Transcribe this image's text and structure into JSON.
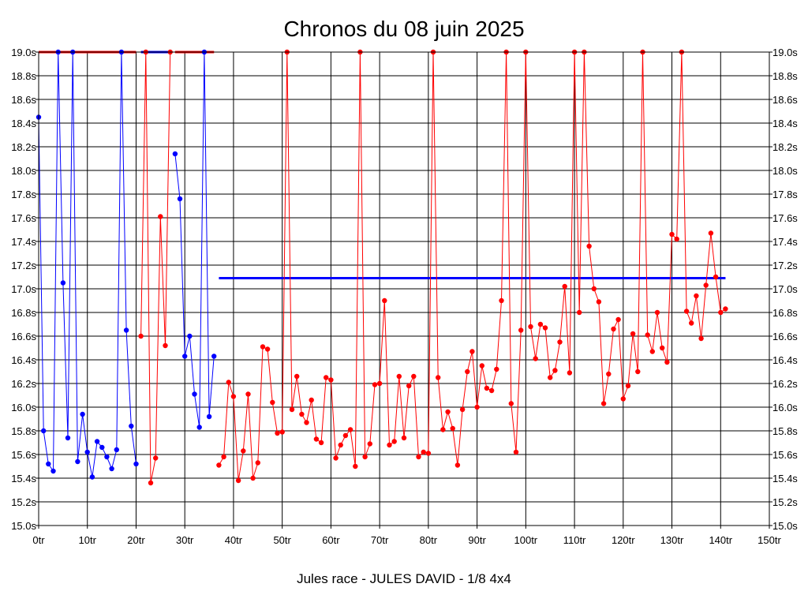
{
  "chart_data": {
    "type": "line",
    "title": "Chronos du 08 juin 2025",
    "xlabel": "Jules race - JULES DAVID - 1/8 4x4",
    "ylabel": "",
    "xlim": [
      0,
      150
    ],
    "ylim": [
      15.0,
      19.0
    ],
    "x_ticks": [
      0,
      10,
      20,
      30,
      40,
      50,
      60,
      70,
      80,
      90,
      100,
      110,
      120,
      130,
      140,
      150
    ],
    "x_tick_labels": [
      "0tr",
      "10tr",
      "20tr",
      "30tr",
      "40tr",
      "50tr",
      "60tr",
      "70tr",
      "80tr",
      "90tr",
      "100tr",
      "110tr",
      "120tr",
      "130tr",
      "140tr",
      "150tr"
    ],
    "y_ticks": [
      15.0,
      15.2,
      15.4,
      15.6,
      15.8,
      16.0,
      16.2,
      16.4,
      16.6,
      16.8,
      17.0,
      17.2,
      17.4,
      17.6,
      17.8,
      18.0,
      18.2,
      18.4,
      18.6,
      18.8,
      19.0
    ],
    "y_tick_labels": [
      "15.0s",
      "15.2s",
      "15.4s",
      "15.6s",
      "15.8s",
      "16.0s",
      "16.2s",
      "16.4s",
      "16.6s",
      "16.8s",
      "17.0s",
      "17.2s",
      "17.4s",
      "17.6s",
      "17.8s",
      "18.0s",
      "18.2s",
      "18.4s",
      "18.6s",
      "18.8s",
      "19.0s"
    ],
    "grid": true,
    "colors": {
      "blue_series": "#0000ff",
      "red_series": "#ff0000",
      "grid": "#000000"
    },
    "series": [
      {
        "color": "#0000ff",
        "points": [
          [
            0,
            18.45
          ],
          [
            1,
            15.8
          ],
          [
            2,
            15.52
          ],
          [
            3,
            15.46
          ],
          [
            4,
            19.0
          ],
          [
            5,
            17.05
          ],
          [
            6,
            15.74
          ],
          [
            7,
            19.0
          ],
          [
            8,
            15.54
          ],
          [
            9,
            15.94
          ],
          [
            10,
            15.62
          ],
          [
            11,
            15.41
          ],
          [
            12,
            15.71
          ],
          [
            13,
            15.66
          ],
          [
            14,
            15.58
          ],
          [
            15,
            15.48
          ],
          [
            16,
            15.64
          ],
          [
            17,
            19.0
          ],
          [
            18,
            16.65
          ],
          [
            19,
            15.84
          ],
          [
            20,
            15.52
          ]
        ]
      },
      {
        "color": "#ff0000",
        "points": [
          [
            21,
            16.6
          ],
          [
            22,
            19.0
          ],
          [
            23,
            15.36
          ],
          [
            24,
            15.57
          ],
          [
            25,
            17.61
          ],
          [
            26,
            16.52
          ],
          [
            27,
            19.0
          ]
        ]
      },
      {
        "color": "#0000ff",
        "points": [
          [
            28,
            18.14
          ],
          [
            29,
            17.76
          ],
          [
            30,
            16.43
          ],
          [
            31,
            16.6
          ],
          [
            32,
            16.11
          ],
          [
            33,
            15.83
          ],
          [
            34,
            19.0
          ],
          [
            35,
            15.92
          ],
          [
            36,
            16.43
          ]
        ]
      },
      {
        "color": "#ff0000",
        "points": [
          [
            37,
            15.51
          ],
          [
            38,
            15.58
          ],
          [
            39,
            16.21
          ],
          [
            40,
            16.09
          ],
          [
            41,
            15.38
          ],
          [
            42,
            15.63
          ],
          [
            43,
            16.11
          ],
          [
            44,
            15.4
          ],
          [
            45,
            15.53
          ],
          [
            46,
            16.51
          ],
          [
            47,
            16.49
          ],
          [
            48,
            16.04
          ],
          [
            49,
            15.78
          ],
          [
            50,
            15.79
          ],
          [
            51,
            19.0
          ],
          [
            52,
            15.98
          ],
          [
            53,
            16.26
          ],
          [
            54,
            15.94
          ],
          [
            55,
            15.87
          ],
          [
            56,
            16.06
          ],
          [
            57,
            15.73
          ],
          [
            58,
            15.7
          ],
          [
            59,
            16.25
          ],
          [
            60,
            16.23
          ],
          [
            61,
            15.57
          ],
          [
            62,
            15.68
          ],
          [
            63,
            15.76
          ],
          [
            64,
            15.81
          ],
          [
            65,
            15.5
          ],
          [
            66,
            19.0
          ],
          [
            67,
            15.58
          ],
          [
            68,
            15.69
          ],
          [
            69,
            16.19
          ],
          [
            70,
            16.2
          ],
          [
            71,
            16.9
          ],
          [
            72,
            15.68
          ],
          [
            73,
            15.71
          ],
          [
            74,
            16.26
          ],
          [
            75,
            15.74
          ],
          [
            76,
            16.18
          ],
          [
            77,
            16.26
          ],
          [
            78,
            15.58
          ],
          [
            79,
            15.62
          ],
          [
            80,
            15.61
          ],
          [
            81,
            19.0
          ],
          [
            82,
            16.25
          ],
          [
            83,
            15.81
          ],
          [
            84,
            15.96
          ],
          [
            85,
            15.82
          ],
          [
            86,
            15.51
          ],
          [
            87,
            15.98
          ],
          [
            88,
            16.3
          ],
          [
            89,
            16.47
          ],
          [
            90,
            16.0
          ],
          [
            91,
            16.35
          ],
          [
            92,
            16.16
          ],
          [
            93,
            16.14
          ],
          [
            94,
            16.32
          ],
          [
            95,
            16.9
          ],
          [
            96,
            19.0
          ],
          [
            97,
            16.03
          ],
          [
            98,
            15.62
          ],
          [
            99,
            16.65
          ],
          [
            100,
            19.0
          ],
          [
            101,
            16.68
          ],
          [
            102,
            16.41
          ],
          [
            103,
            16.7
          ],
          [
            104,
            16.67
          ],
          [
            105,
            16.25
          ],
          [
            106,
            16.31
          ],
          [
            107,
            16.55
          ],
          [
            108,
            17.02
          ],
          [
            109,
            16.29
          ],
          [
            110,
            19.0
          ],
          [
            111,
            16.8
          ],
          [
            112,
            19.0
          ],
          [
            113,
            17.36
          ],
          [
            114,
            17.0
          ],
          [
            115,
            16.89
          ],
          [
            116,
            16.03
          ],
          [
            117,
            16.28
          ],
          [
            118,
            16.66
          ],
          [
            119,
            16.74
          ],
          [
            120,
            16.07
          ],
          [
            121,
            16.18
          ],
          [
            122,
            16.62
          ],
          [
            123,
            16.3
          ],
          [
            124,
            19.0
          ],
          [
            125,
            16.61
          ],
          [
            126,
            16.47
          ],
          [
            127,
            16.8
          ],
          [
            128,
            16.5
          ],
          [
            129,
            16.38
          ],
          [
            130,
            17.46
          ],
          [
            131,
            17.42
          ],
          [
            132,
            19.0
          ],
          [
            133,
            16.81
          ],
          [
            134,
            16.71
          ],
          [
            135,
            16.94
          ],
          [
            136,
            16.58
          ],
          [
            137,
            17.03
          ],
          [
            138,
            17.47
          ],
          [
            139,
            17.1
          ],
          [
            140,
            16.8
          ],
          [
            141,
            16.83
          ]
        ]
      }
    ],
    "reference_lines": [
      {
        "color": "#ff0000",
        "x": [
          0,
          20
        ],
        "y": 19.0
      },
      {
        "color": "#0000ff",
        "x": [
          21,
          27
        ],
        "y": 19.0
      },
      {
        "color": "#ff0000",
        "x": [
          28,
          36
        ],
        "y": 19.0
      },
      {
        "color": "#0000ff",
        "x": [
          37,
          141
        ],
        "y": 17.09
      }
    ]
  }
}
